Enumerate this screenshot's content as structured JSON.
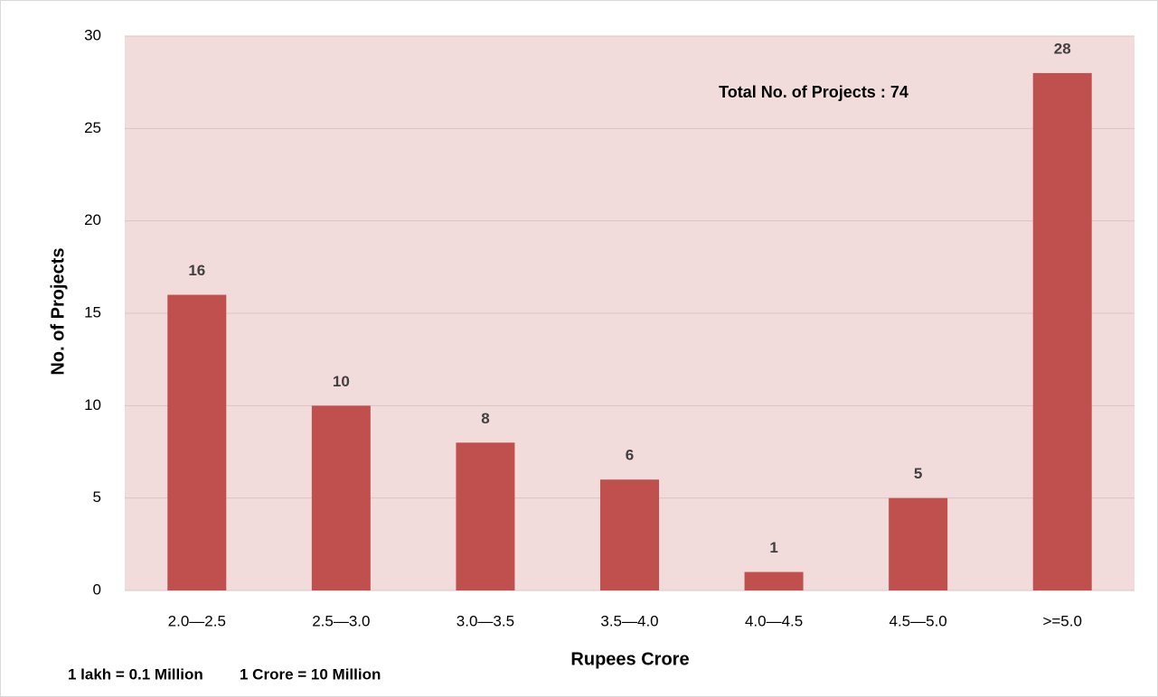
{
  "chart_data": {
    "type": "bar",
    "categories": [
      "2.0—2.5",
      "2.5—3.0",
      "3.0—3.5",
      "3.5—4.0",
      "4.0—4.5",
      "4.5—5.0",
      ">=5.0"
    ],
    "values": [
      16,
      10,
      8,
      6,
      1,
      5,
      28
    ],
    "color": "#c0504d",
    "ylim": [
      0,
      30
    ],
    "yticks": [
      0,
      5,
      10,
      15,
      20,
      25,
      30
    ],
    "grid": true,
    "y_label": "No. of Projects",
    "x_label": "Rupees Crore",
    "annotation": "Total No. of Projects : 74",
    "footnotes": [
      "1 lakh = 0.1 Million",
      "1 Crore = 10 Million"
    ]
  }
}
